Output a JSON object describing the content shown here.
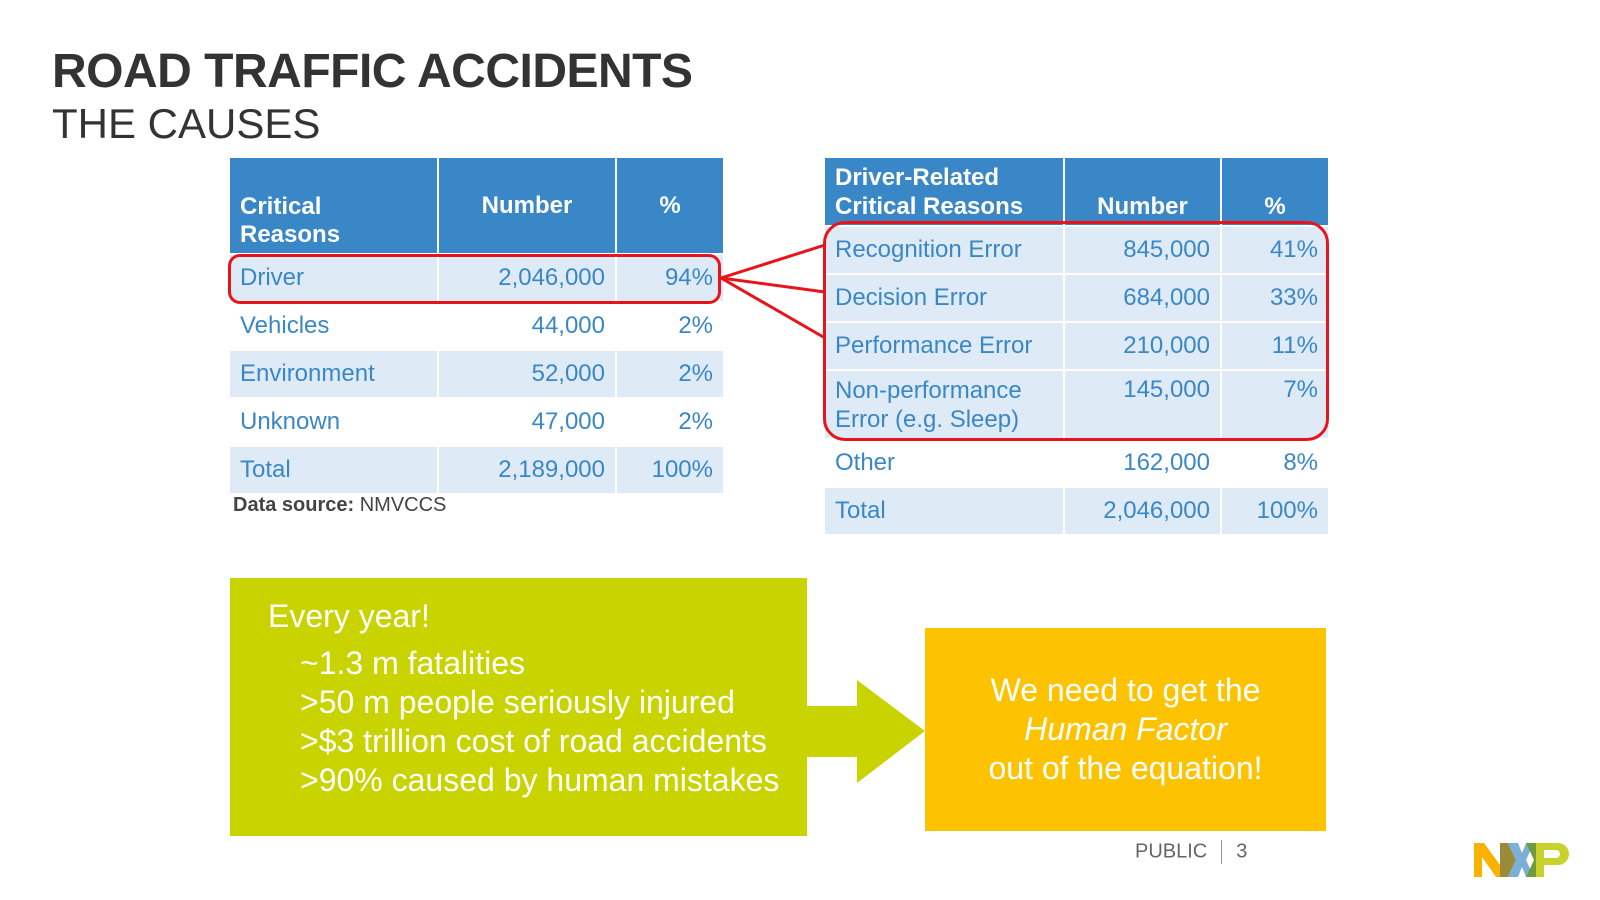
{
  "title": "ROAD TRAFFIC ACCIDENTS",
  "subtitle": "THE CAUSES",
  "table1": {
    "headers": [
      "Critical Reasons",
      "Number",
      "%"
    ],
    "rows": [
      [
        "Driver",
        "2,046,000",
        "94%"
      ],
      [
        "Vehicles",
        "44,000",
        "2%"
      ],
      [
        "Environment",
        "52,000",
        "2%"
      ],
      [
        "Unknown",
        "47,000",
        "2%"
      ],
      [
        "Total",
        "2,189,000",
        "100%"
      ]
    ]
  },
  "source": {
    "label": "Data source:",
    "value": "NMVCCS"
  },
  "table2": {
    "headers": [
      "Driver-Related Critical Reasons",
      "Number",
      "%"
    ],
    "rows": [
      [
        "Recognition Error",
        "845,000",
        "41%"
      ],
      [
        "Decision Error",
        "684,000",
        "33%"
      ],
      [
        "Performance Error",
        "210,000",
        "11%"
      ],
      [
        "Non-performance Error (e.g. Sleep)",
        "145,000",
        "7%"
      ],
      [
        "Other",
        "162,000",
        "8%"
      ],
      [
        "Total",
        "2,046,000",
        "100%"
      ]
    ]
  },
  "facts": {
    "heading": "Every year!",
    "items": [
      "~1.3 m fatalities",
      ">50 m people seriously injured",
      ">$3 trillion cost of road accidents",
      ">90% caused by human mistakes"
    ]
  },
  "conclusion": {
    "line1": "We need to get the",
    "line2": "Human Factor",
    "line3": "out of the equation!"
  },
  "footer": {
    "classification": "PUBLIC",
    "page": "3"
  },
  "logo": "NXP",
  "colors": {
    "header": "#3a87c8",
    "row_alt": "#deebf6",
    "highlight": "#e8141b",
    "green": "#c8d300",
    "orange": "#fdc300"
  }
}
